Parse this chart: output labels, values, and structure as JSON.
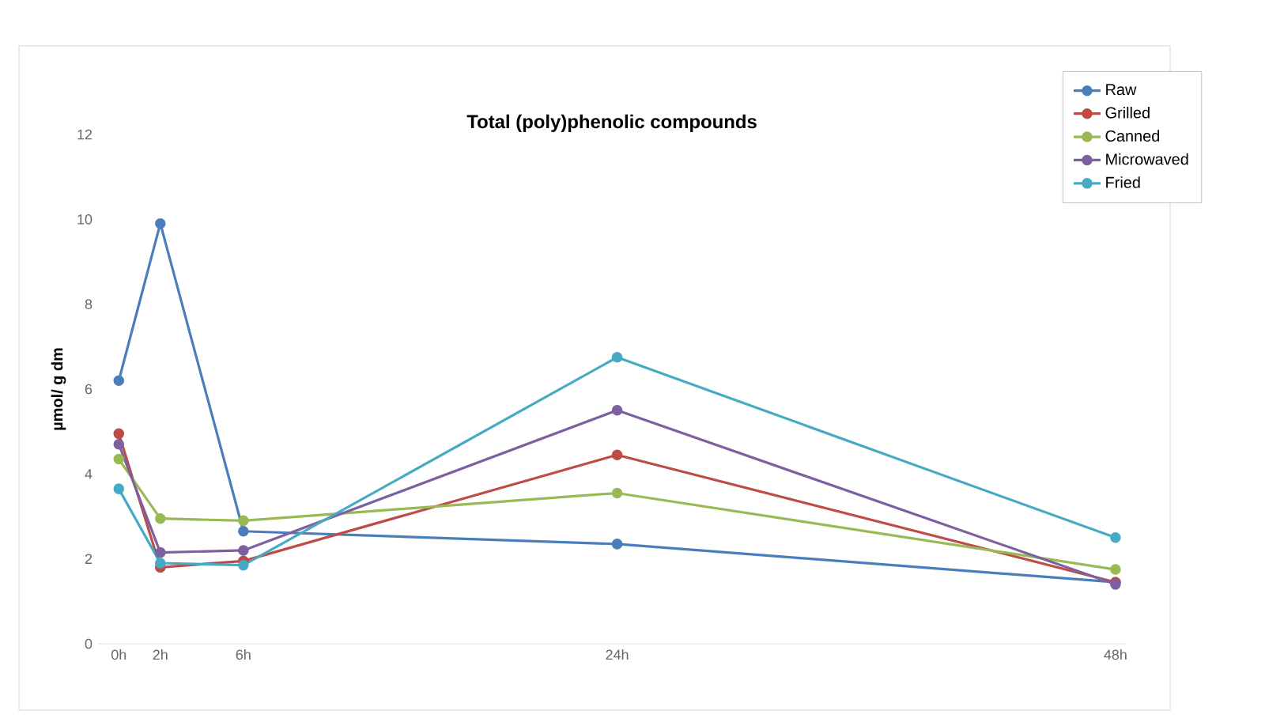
{
  "chart_data": {
    "type": "line",
    "title": "Total (poly)phenolic compounds",
    "ylabel": "µmol/ g dm",
    "x": [
      0,
      2,
      6,
      24,
      48
    ],
    "xlim": [
      -1,
      48.5
    ],
    "xticks": [
      {
        "value": 0,
        "label": "0h"
      },
      {
        "value": 2,
        "label": "2h"
      },
      {
        "value": 6,
        "label": "6h"
      },
      {
        "value": 24,
        "label": "24h"
      },
      {
        "value": 48,
        "label": "48h"
      }
    ],
    "ylim": [
      0,
      12
    ],
    "yticks": [
      0,
      2,
      4,
      6,
      8,
      10,
      12
    ],
    "grid": false,
    "legend": "top right",
    "marker": "circle",
    "line_style": "solid",
    "series": [
      {
        "name": "Raw",
        "color": "#4a7ebb",
        "values": [
          6.2,
          9.9,
          2.65,
          2.35,
          1.45
        ]
      },
      {
        "name": "Grilled",
        "color": "#be4b48",
        "values": [
          4.95,
          1.8,
          1.95,
          4.45,
          1.45
        ]
      },
      {
        "name": "Canned",
        "color": "#98b954",
        "values": [
          4.35,
          2.95,
          2.9,
          3.55,
          1.75
        ]
      },
      {
        "name": "Microwaved",
        "color": "#7d60a0",
        "values": [
          4.7,
          2.15,
          2.2,
          5.5,
          1.4
        ]
      },
      {
        "name": "Fried",
        "color": "#46aac5",
        "values": [
          3.65,
          1.9,
          1.85,
          6.75,
          2.5
        ]
      }
    ]
  }
}
